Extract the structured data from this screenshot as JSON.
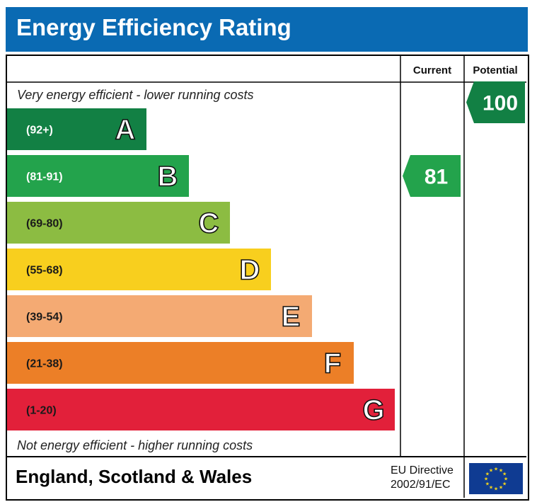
{
  "header": {
    "title": "Energy Efficiency Rating"
  },
  "columns": {
    "current": "Current",
    "potential": "Potential"
  },
  "captions": {
    "top": "Very energy efficient - lower running costs",
    "bottom": "Not energy efficient - higher running costs"
  },
  "footer": {
    "region": "England, Scotland & Wales",
    "directive_line1": "EU Directive",
    "directive_line2": "2002/91/EC"
  },
  "colors": {
    "header_bg": "#0a6ab3",
    "A": "#128044",
    "B": "#23a34c",
    "C": "#8cbc42",
    "D": "#f8cf1e",
    "E": "#f4aa73",
    "F": "#ec7f27",
    "G": "#e2203a",
    "eu_flag": "#0f3b92",
    "eu_stars": "#f3d51c"
  },
  "chart_data": {
    "type": "bar",
    "categories": [
      "A",
      "B",
      "C",
      "D",
      "E",
      "F",
      "G"
    ],
    "ranges": [
      "(92+)",
      "(81-91)",
      "(69-80)",
      "(55-68)",
      "(39-54)",
      "(21-38)",
      "(1-20)"
    ],
    "current": {
      "value": 81,
      "band": "B"
    },
    "potential": {
      "value": 100,
      "band": "A"
    }
  }
}
